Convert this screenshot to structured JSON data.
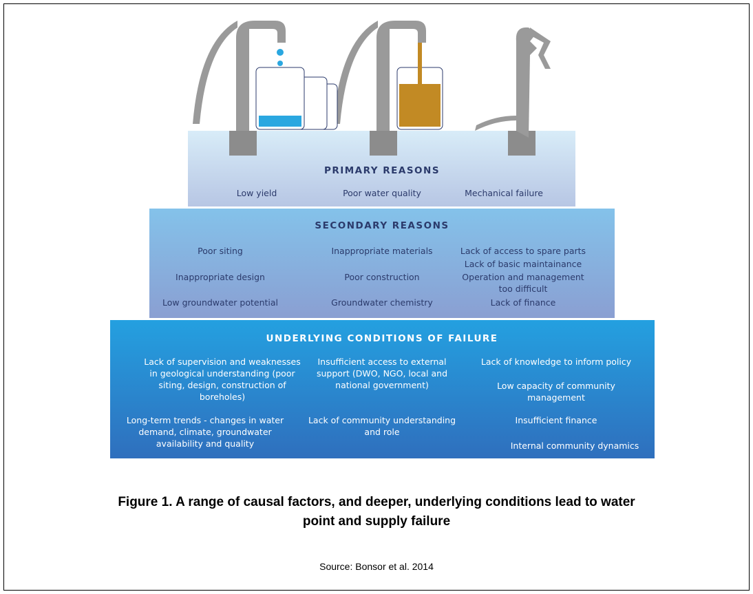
{
  "tiers": [
    {
      "title": "PRIMARY REASONS",
      "items": [
        "Low yield",
        "Poor water quality",
        "Mechanical failure"
      ]
    },
    {
      "title": "SECONDARY REASONS",
      "items": [
        "Poor siting",
        "Inappropriate materials",
        "Lack of access to spare parts",
        "Lack of basic maintainance",
        "Inappropriate design",
        "Poor construction",
        "Operation and management too difficult",
        "Low groundwater potential",
        "Groundwater chemistry",
        "Lack of finance"
      ]
    },
    {
      "title": "UNDERLYING CONDITIONS OF FAILURE",
      "items": [
        "Lack of supervision and weaknesses in geological understanding (poor siting, design, construction of boreholes)",
        "Insufficient access to external support (DWO, NGO, local and national government)",
        "Lack of knowledge to inform policy",
        "Low capacity of community management",
        "Long-term trends - changes in water demand, climate, groundwater availability and quality",
        "Lack of community understanding and role",
        "Insufficient finance",
        "Internal community dynamics"
      ]
    }
  ],
  "caption": "Figure 1. A range of causal factors, and deeper, underlying conditions lead to water point and supply failure",
  "source": "Source: Bonsor et al. 2014"
}
